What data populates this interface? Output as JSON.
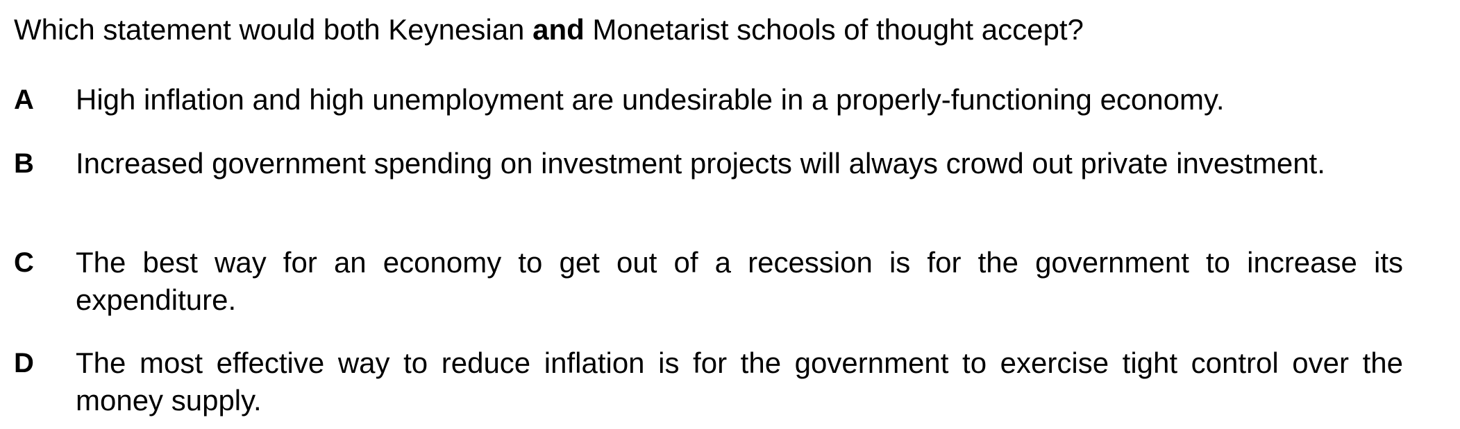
{
  "question": {
    "stem_before": "Which statement would both Keynesian ",
    "stem_bold": "and",
    "stem_after": " Monetarist schools of thought accept?",
    "options": [
      {
        "letter": "A",
        "text": "High inflation and high unemployment are undesirable in a properly-functioning economy."
      },
      {
        "letter": "B",
        "text": "Increased government spending on investment projects will always crowd out private investment."
      },
      {
        "letter": "C",
        "text": "The best way for an economy to get out of a recession is for the government to increase its expenditure."
      },
      {
        "letter": "D",
        "text": "The most effective way to reduce inflation is for the government to exercise tight control over the money supply."
      }
    ]
  }
}
